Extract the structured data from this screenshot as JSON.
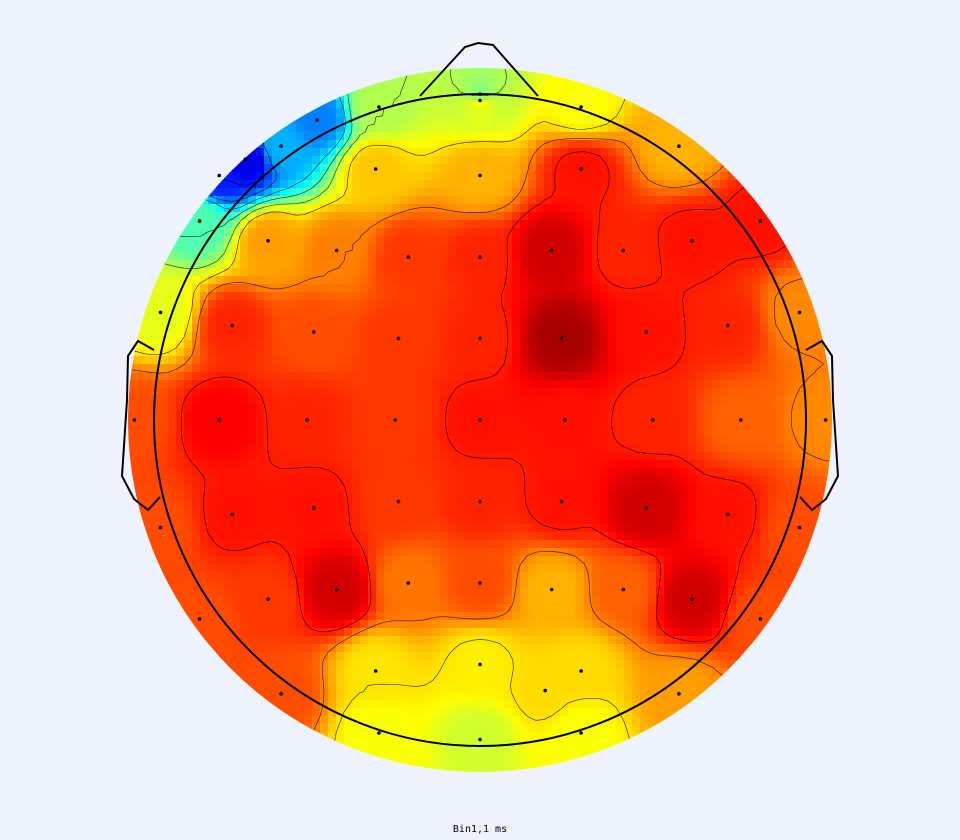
{
  "chart_data": {
    "type": "heatmap",
    "subtype": "scalp-topography",
    "title": "",
    "caption": "Bin1,1 ms",
    "colormap": "jet",
    "value_range": [
      0,
      1
    ],
    "electrodes": [
      {
        "x": 0.0,
        "y": 0.98,
        "v": 0.62
      },
      {
        "x": -0.31,
        "y": 0.96,
        "v": 0.55
      },
      {
        "x": 0.31,
        "y": 0.96,
        "v": 0.62
      },
      {
        "x": -0.61,
        "y": 0.84,
        "v": 0.3
      },
      {
        "x": 0.61,
        "y": 0.84,
        "v": 0.7
      },
      {
        "x": -0.32,
        "y": 0.77,
        "v": 0.68
      },
      {
        "x": 0.0,
        "y": 0.75,
        "v": 0.7
      },
      {
        "x": 0.31,
        "y": 0.77,
        "v": 0.86
      },
      {
        "x": -0.86,
        "y": 0.61,
        "v": 0.45
      },
      {
        "x": -0.65,
        "y": 0.55,
        "v": 0.72
      },
      {
        "x": -0.44,
        "y": 0.52,
        "v": 0.75
      },
      {
        "x": -0.22,
        "y": 0.5,
        "v": 0.82
      },
      {
        "x": 0.0,
        "y": 0.5,
        "v": 0.84
      },
      {
        "x": 0.22,
        "y": 0.52,
        "v": 0.92
      },
      {
        "x": 0.44,
        "y": 0.52,
        "v": 0.84
      },
      {
        "x": 0.65,
        "y": 0.55,
        "v": 0.86
      },
      {
        "x": 0.86,
        "y": 0.61,
        "v": 0.86
      },
      {
        "x": -0.98,
        "y": 0.33,
        "v": 0.6
      },
      {
        "x": -0.76,
        "y": 0.29,
        "v": 0.84
      },
      {
        "x": -0.51,
        "y": 0.27,
        "v": 0.8
      },
      {
        "x": -0.25,
        "y": 0.25,
        "v": 0.82
      },
      {
        "x": 0.0,
        "y": 0.25,
        "v": 0.84
      },
      {
        "x": 0.25,
        "y": 0.25,
        "v": 0.96
      },
      {
        "x": 0.51,
        "y": 0.27,
        "v": 0.86
      },
      {
        "x": 0.76,
        "y": 0.29,
        "v": 0.84
      },
      {
        "x": 0.98,
        "y": 0.33,
        "v": 0.74
      },
      {
        "x": -1.06,
        "y": 0.0,
        "v": 0.8
      },
      {
        "x": -0.8,
        "y": 0.0,
        "v": 0.88
      },
      {
        "x": -0.53,
        "y": 0.0,
        "v": 0.84
      },
      {
        "x": -0.26,
        "y": 0.0,
        "v": 0.82
      },
      {
        "x": 0.0,
        "y": 0.0,
        "v": 0.86
      },
      {
        "x": 0.26,
        "y": 0.0,
        "v": 0.86
      },
      {
        "x": 0.53,
        "y": 0.0,
        "v": 0.84
      },
      {
        "x": 0.8,
        "y": 0.0,
        "v": 0.78
      },
      {
        "x": 1.06,
        "y": 0.0,
        "v": 0.74
      },
      {
        "x": -0.98,
        "y": -0.33,
        "v": 0.8
      },
      {
        "x": -0.76,
        "y": -0.29,
        "v": 0.86
      },
      {
        "x": -0.51,
        "y": -0.27,
        "v": 0.86
      },
      {
        "x": -0.25,
        "y": -0.25,
        "v": 0.82
      },
      {
        "x": 0.0,
        "y": -0.25,
        "v": 0.84
      },
      {
        "x": 0.25,
        "y": -0.25,
        "v": 0.86
      },
      {
        "x": 0.51,
        "y": -0.27,
        "v": 0.92
      },
      {
        "x": 0.76,
        "y": -0.29,
        "v": 0.86
      },
      {
        "x": 0.98,
        "y": -0.33,
        "v": 0.8
      },
      {
        "x": -0.65,
        "y": -0.55,
        "v": 0.82
      },
      {
        "x": -0.44,
        "y": -0.52,
        "v": 0.92
      },
      {
        "x": -0.22,
        "y": -0.5,
        "v": 0.76
      },
      {
        "x": 0.0,
        "y": -0.5,
        "v": 0.8
      },
      {
        "x": 0.22,
        "y": -0.52,
        "v": 0.7
      },
      {
        "x": 0.44,
        "y": -0.52,
        "v": 0.78
      },
      {
        "x": 0.65,
        "y": -0.55,
        "v": 0.92
      },
      {
        "x": -0.86,
        "y": -0.61,
        "v": 0.8
      },
      {
        "x": 0.86,
        "y": -0.61,
        "v": 0.8
      },
      {
        "x": -0.32,
        "y": -0.77,
        "v": 0.65
      },
      {
        "x": 0.0,
        "y": -0.75,
        "v": 0.64
      },
      {
        "x": 0.31,
        "y": -0.77,
        "v": 0.66
      },
      {
        "x": -0.61,
        "y": -0.84,
        "v": 0.8
      },
      {
        "x": 0.61,
        "y": -0.84,
        "v": 0.72
      },
      {
        "x": -0.31,
        "y": -0.96,
        "v": 0.62
      },
      {
        "x": 0.0,
        "y": -0.98,
        "v": 0.58
      },
      {
        "x": 0.31,
        "y": -0.96,
        "v": 0.62
      },
      {
        "x": 0.2,
        "y": -0.83,
        "v": 0.66
      },
      {
        "x": 0.0,
        "y": 1.0,
        "v": 0.5
      },
      {
        "x": -0.5,
        "y": 0.92,
        "v": 0.25
      },
      {
        "x": -0.72,
        "y": 0.8,
        "v": 0.1
      },
      {
        "x": -0.8,
        "y": 0.75,
        "v": 0.15
      }
    ],
    "contour_levels": [
      0.15,
      0.25,
      0.35,
      0.45,
      0.55,
      0.65,
      0.75,
      0.85
    ],
    "head": {
      "nose": true,
      "ears": true
    },
    "legend": "none",
    "grid": false
  }
}
